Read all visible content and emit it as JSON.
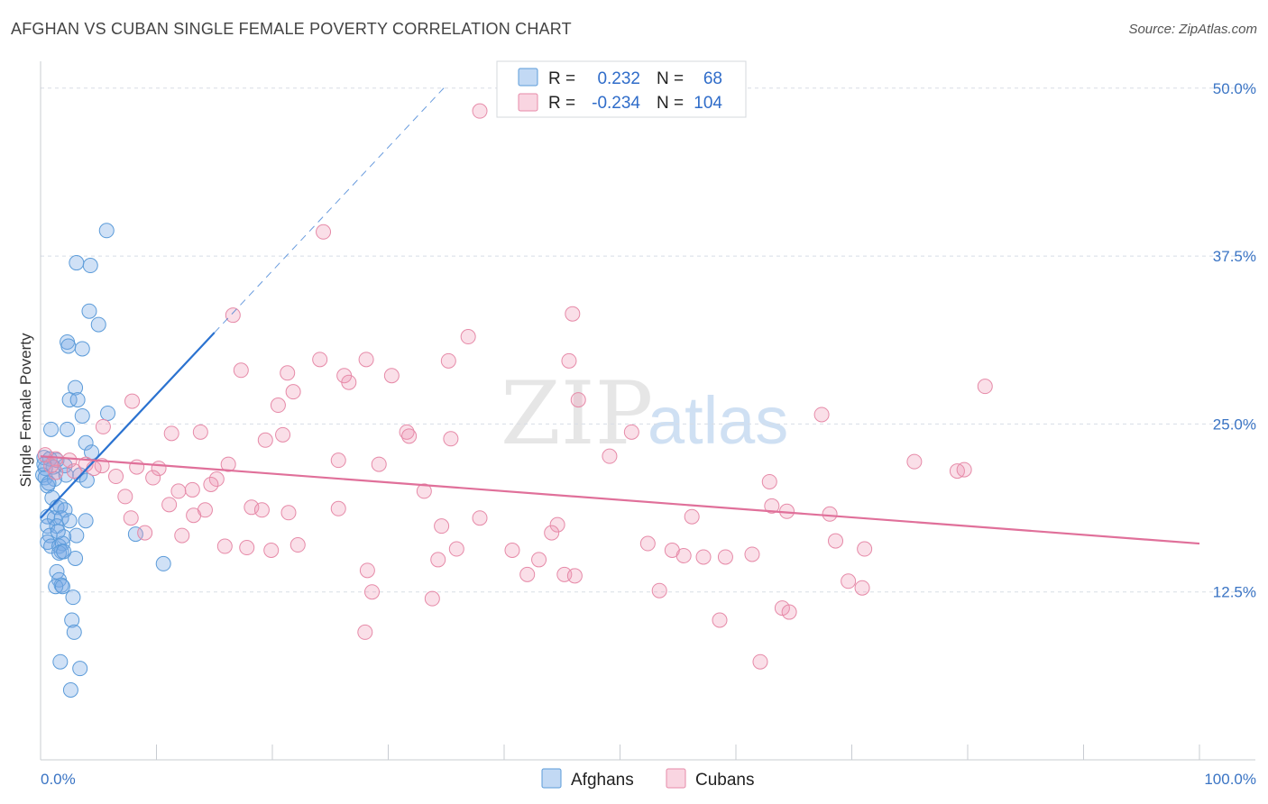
{
  "title": "AFGHAN VS CUBAN SINGLE FEMALE POVERTY CORRELATION CHART",
  "source": "Source: ZipAtlas.com",
  "watermark": {
    "zip": "ZIP",
    "atlas": "atlas"
  },
  "colors": {
    "afghans": "#5b9bd9",
    "afghans_fill": "rgba(120,170,230,0.35)",
    "afghans_line": "#2a72d0",
    "cubans": "#e68aa8",
    "cubans_fill": "rgba(240,150,180,0.30)",
    "cubans_line": "#e0709a",
    "grid": "#d8dde6",
    "axis": "#c8ccd2",
    "label": "#3a74c4"
  },
  "legend": {
    "r_label": "R =",
    "n_label": "N =",
    "rows": [
      {
        "series": "Afghans",
        "r": "0.232",
        "n": "68"
      },
      {
        "series": "Cubans",
        "r": "-0.234",
        "n": "104"
      }
    ]
  },
  "chart_data": {
    "type": "scatter",
    "title": "AFGHAN VS CUBAN SINGLE FEMALE POVERTY CORRELATION CHART",
    "xlabel": "",
    "ylabel": "Single Female Poverty",
    "xlim": [
      0,
      100
    ],
    "ylim": [
      0,
      52
    ],
    "x_tick_labels": [
      "0.0%",
      "100.0%"
    ],
    "y_ticks": [
      12.5,
      25.0,
      37.5,
      50.0
    ],
    "y_tick_labels": [
      "12.5%",
      "25.0%",
      "37.5%",
      "50.0%"
    ],
    "grid": true,
    "legend_position": "top-center",
    "series": [
      {
        "name": "Afghans",
        "r": 0.232,
        "n": 68,
        "trend": {
          "x0": 0,
          "y0": 18.0,
          "x1": 15,
          "y1": 31.8,
          "dash_to_x": 35,
          "dash_to_y": 50.2
        },
        "points": [
          [
            5.7,
            39.4
          ],
          [
            4.3,
            36.8
          ],
          [
            3.1,
            37.0
          ],
          [
            4.2,
            33.4
          ],
          [
            5.0,
            32.4
          ],
          [
            2.3,
            31.1
          ],
          [
            2.4,
            30.8
          ],
          [
            3.6,
            30.6
          ],
          [
            3.0,
            27.7
          ],
          [
            2.5,
            26.8
          ],
          [
            3.2,
            26.8
          ],
          [
            3.6,
            25.6
          ],
          [
            5.8,
            25.8
          ],
          [
            0.9,
            24.6
          ],
          [
            2.3,
            24.6
          ],
          [
            3.9,
            23.6
          ],
          [
            4.4,
            22.9
          ],
          [
            0.3,
            22.5
          ],
          [
            0.8,
            22.4
          ],
          [
            1.4,
            22.3
          ],
          [
            1.1,
            21.8
          ],
          [
            2.1,
            21.9
          ],
          [
            0.4,
            21.7
          ],
          [
            0.2,
            21.2
          ],
          [
            0.4,
            21.0
          ],
          [
            1.2,
            20.9
          ],
          [
            2.2,
            21.2
          ],
          [
            3.4,
            21.2
          ],
          [
            4.0,
            20.8
          ],
          [
            0.6,
            20.4
          ],
          [
            1.0,
            19.5
          ],
          [
            1.4,
            18.8
          ],
          [
            1.7,
            18.9
          ],
          [
            2.1,
            18.6
          ],
          [
            0.6,
            18.1
          ],
          [
            1.2,
            18.0
          ],
          [
            1.8,
            18.0
          ],
          [
            2.5,
            17.8
          ],
          [
            3.9,
            17.8
          ],
          [
            0.6,
            17.4
          ],
          [
            1.4,
            17.4
          ],
          [
            0.8,
            16.7
          ],
          [
            2.0,
            16.6
          ],
          [
            3.1,
            16.7
          ],
          [
            8.2,
            16.8
          ],
          [
            0.6,
            16.2
          ],
          [
            0.9,
            15.9
          ],
          [
            1.6,
            15.9
          ],
          [
            1.9,
            16.1
          ],
          [
            1.8,
            15.5
          ],
          [
            1.6,
            15.4
          ],
          [
            2.0,
            15.5
          ],
          [
            3.0,
            15.0
          ],
          [
            10.6,
            14.6
          ],
          [
            1.4,
            14.0
          ],
          [
            1.6,
            13.4
          ],
          [
            1.8,
            13.0
          ],
          [
            1.3,
            12.9
          ],
          [
            1.9,
            12.9
          ],
          [
            2.8,
            12.1
          ],
          [
            2.7,
            10.4
          ],
          [
            2.9,
            9.5
          ],
          [
            1.7,
            7.3
          ],
          [
            3.4,
            6.8
          ],
          [
            2.6,
            5.2
          ],
          [
            0.3,
            22.0
          ],
          [
            0.7,
            20.6
          ],
          [
            1.5,
            17.0
          ]
        ]
      },
      {
        "name": "Cubans",
        "r": -0.234,
        "n": 104,
        "trend": {
          "x0": 0,
          "y0": 22.6,
          "x1": 100,
          "y1": 16.1
        },
        "points": [
          [
            37.9,
            48.3
          ],
          [
            24.4,
            39.3
          ],
          [
            16.6,
            33.1
          ],
          [
            45.9,
            33.2
          ],
          [
            36.9,
            31.5
          ],
          [
            24.1,
            29.8
          ],
          [
            28.1,
            29.8
          ],
          [
            35.2,
            29.7
          ],
          [
            17.3,
            29.0
          ],
          [
            21.3,
            28.8
          ],
          [
            26.2,
            28.6
          ],
          [
            30.3,
            28.6
          ],
          [
            26.6,
            28.1
          ],
          [
            45.6,
            29.7
          ],
          [
            81.5,
            27.8
          ],
          [
            21.8,
            27.4
          ],
          [
            7.9,
            26.7
          ],
          [
            20.5,
            26.4
          ],
          [
            46.4,
            26.8
          ],
          [
            67.4,
            25.7
          ],
          [
            5.4,
            24.8
          ],
          [
            11.3,
            24.3
          ],
          [
            13.8,
            24.4
          ],
          [
            20.9,
            24.2
          ],
          [
            31.6,
            24.4
          ],
          [
            31.8,
            24.1
          ],
          [
            35.4,
            23.9
          ],
          [
            19.4,
            23.8
          ],
          [
            51.0,
            24.4
          ],
          [
            0.4,
            22.7
          ],
          [
            1.3,
            22.4
          ],
          [
            2.5,
            22.3
          ],
          [
            3.9,
            22.0
          ],
          [
            5.3,
            21.9
          ],
          [
            4.6,
            21.7
          ],
          [
            8.3,
            21.8
          ],
          [
            10.2,
            21.7
          ],
          [
            16.2,
            22.0
          ],
          [
            25.7,
            22.3
          ],
          [
            29.2,
            22.0
          ],
          [
            49.1,
            22.6
          ],
          [
            75.4,
            22.2
          ],
          [
            2.9,
            21.5
          ],
          [
            1.3,
            21.4
          ],
          [
            6.5,
            21.1
          ],
          [
            9.7,
            21.0
          ],
          [
            15.2,
            20.9
          ],
          [
            14.7,
            20.5
          ],
          [
            13.1,
            20.1
          ],
          [
            11.9,
            20.0
          ],
          [
            33.1,
            20.0
          ],
          [
            62.9,
            20.7
          ],
          [
            79.1,
            21.5
          ],
          [
            79.7,
            21.6
          ],
          [
            7.3,
            19.6
          ],
          [
            11.1,
            19.0
          ],
          [
            18.2,
            18.8
          ],
          [
            19.1,
            18.6
          ],
          [
            21.4,
            18.4
          ],
          [
            25.7,
            18.7
          ],
          [
            63.1,
            18.9
          ],
          [
            64.4,
            18.5
          ],
          [
            13.2,
            18.2
          ],
          [
            14.2,
            18.6
          ],
          [
            7.8,
            18.0
          ],
          [
            34.6,
            17.4
          ],
          [
            37.9,
            18.0
          ],
          [
            44.6,
            17.5
          ],
          [
            44.1,
            16.9
          ],
          [
            56.2,
            18.1
          ],
          [
            68.1,
            18.3
          ],
          [
            9.0,
            16.9
          ],
          [
            12.2,
            16.7
          ],
          [
            15.9,
            15.9
          ],
          [
            17.8,
            15.8
          ],
          [
            19.9,
            15.6
          ],
          [
            22.2,
            16.0
          ],
          [
            35.9,
            15.7
          ],
          [
            40.7,
            15.6
          ],
          [
            52.4,
            16.1
          ],
          [
            54.5,
            15.6
          ],
          [
            55.5,
            15.2
          ],
          [
            57.2,
            15.1
          ],
          [
            59.1,
            15.1
          ],
          [
            61.4,
            15.3
          ],
          [
            68.6,
            16.3
          ],
          [
            71.1,
            15.7
          ],
          [
            34.3,
            14.9
          ],
          [
            43.0,
            14.9
          ],
          [
            28.2,
            14.1
          ],
          [
            42.0,
            13.8
          ],
          [
            45.2,
            13.8
          ],
          [
            46.1,
            13.7
          ],
          [
            69.7,
            13.3
          ],
          [
            70.9,
            12.8
          ],
          [
            28.6,
            12.5
          ],
          [
            33.8,
            12.0
          ],
          [
            53.4,
            12.6
          ],
          [
            64.0,
            11.3
          ],
          [
            64.6,
            11.0
          ],
          [
            58.6,
            10.4
          ],
          [
            28.0,
            9.5
          ],
          [
            62.1,
            7.3
          ],
          [
            0.9,
            21.9
          ]
        ]
      }
    ]
  },
  "bottom_legend": [
    {
      "label": "Afghans"
    },
    {
      "label": "Cubans"
    }
  ]
}
